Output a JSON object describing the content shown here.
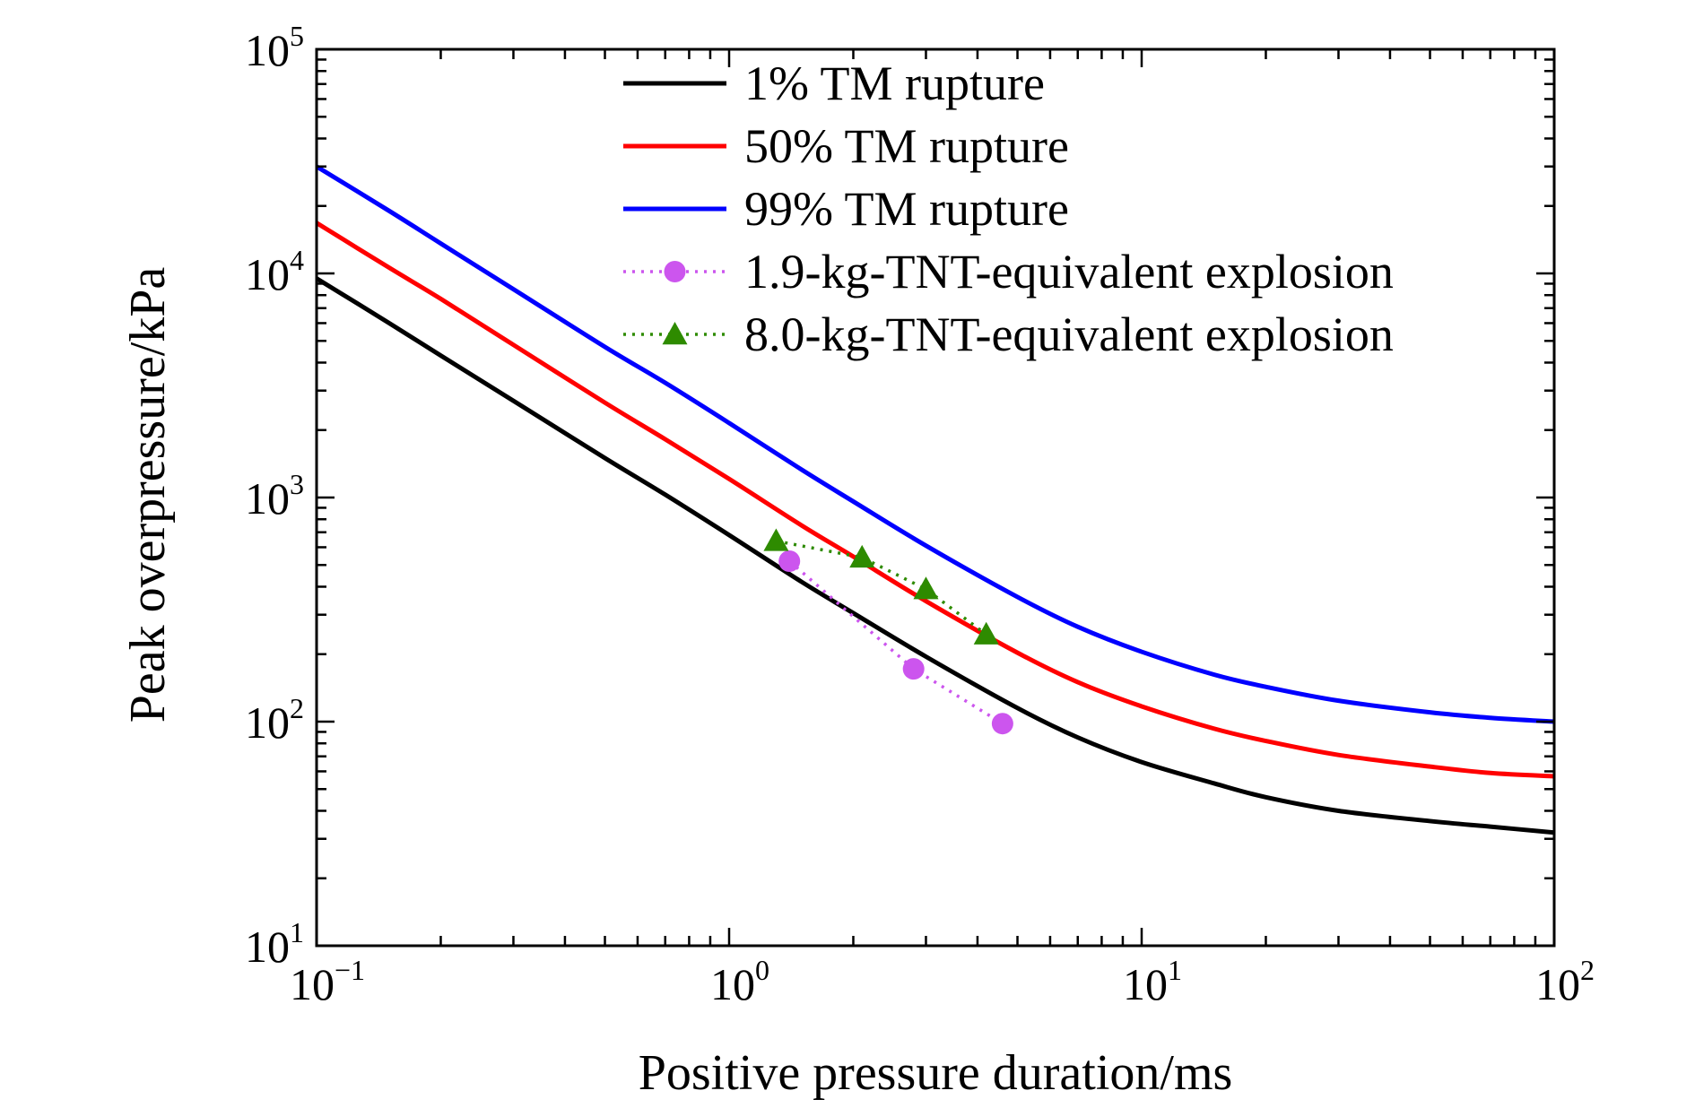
{
  "chart_data": {
    "type": "line",
    "xlabel": "Positive pressure duration/ms",
    "ylabel": "Peak overpressure/kPa",
    "xscale": "log",
    "yscale": "log",
    "xlim": [
      0.1,
      100
    ],
    "ylim": [
      10,
      100000
    ],
    "x_ticks": [
      {
        "base": "10",
        "exp": "−1",
        "value": 0.1
      },
      {
        "base": "10",
        "exp": "0",
        "value": 1
      },
      {
        "base": "10",
        "exp": "1",
        "value": 10
      },
      {
        "base": "10",
        "exp": "2",
        "value": 100
      }
    ],
    "y_ticks": [
      {
        "base": "10",
        "exp": "1",
        "value": 10
      },
      {
        "base": "10",
        "exp": "2",
        "value": 100
      },
      {
        "base": "10",
        "exp": "3",
        "value": 1000
      },
      {
        "base": "10",
        "exp": "4",
        "value": 10000
      },
      {
        "base": "10",
        "exp": "5",
        "value": 100000
      }
    ],
    "legend_position": "top-right",
    "grid": false,
    "series": [
      {
        "name": "1% TM rupture",
        "color": "#000000",
        "style": "solid",
        "x": [
          0.1,
          0.15,
          0.2,
          0.3,
          0.5,
          0.7,
          1,
          1.5,
          2,
          3,
          5,
          7,
          10,
          15,
          20,
          30,
          50,
          70,
          100
        ],
        "y": [
          9500,
          6000,
          4300,
          2700,
          1500,
          1030,
          680,
          420,
          305,
          195,
          115,
          85,
          66,
          53,
          46,
          40,
          36,
          34,
          32
        ]
      },
      {
        "name": "50% TM rupture",
        "color": "#ff0000",
        "style": "solid",
        "x": [
          0.1,
          0.15,
          0.2,
          0.3,
          0.5,
          0.7,
          1,
          1.5,
          2,
          3,
          5,
          7,
          10,
          15,
          20,
          30,
          50,
          70,
          100
        ],
        "y": [
          16800,
          10600,
          7700,
          4800,
          2650,
          1820,
          1210,
          750,
          545,
          345,
          203,
          150,
          117,
          93,
          82,
          71,
          63,
          59,
          57
        ]
      },
      {
        "name": "99% TM rupture",
        "color": "#0000ff",
        "style": "solid",
        "x": [
          0.1,
          0.15,
          0.2,
          0.3,
          0.5,
          0.7,
          1,
          1.5,
          2,
          3,
          5,
          7,
          10,
          15,
          20,
          30,
          50,
          70,
          100
        ],
        "y": [
          30000,
          19000,
          13600,
          8500,
          4700,
          3250,
          2150,
          1330,
          960,
          610,
          360,
          265,
          205,
          162,
          143,
          124,
          110,
          104,
          100
        ]
      },
      {
        "name": "1.9-kg-TNT-equivalent explosion",
        "color": "#cc55ee",
        "style": "dotted",
        "marker": "circle",
        "x": [
          1.4,
          2.8,
          4.6
        ],
        "y": [
          520,
          172,
          98
        ]
      },
      {
        "name": "8.0-kg-TNT-equivalent explosion",
        "color": "#2e8b00",
        "style": "dotted",
        "marker": "triangle",
        "x": [
          1.3,
          2.1,
          3.0,
          4.2
        ],
        "y": [
          640,
          540,
          390,
          245
        ]
      }
    ]
  }
}
